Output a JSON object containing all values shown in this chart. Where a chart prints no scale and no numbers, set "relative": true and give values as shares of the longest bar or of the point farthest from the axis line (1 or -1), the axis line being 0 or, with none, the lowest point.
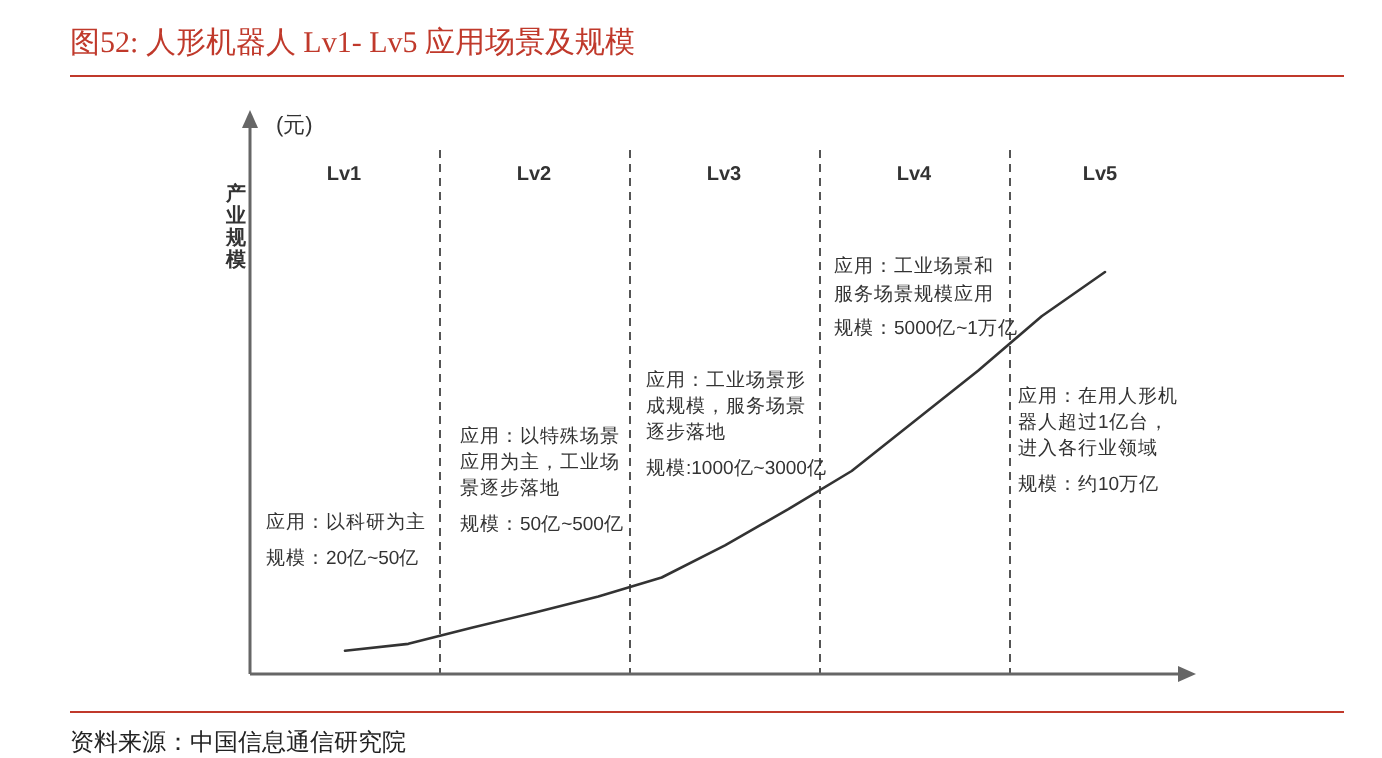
{
  "chart_data": {
    "type": "line",
    "relative": true,
    "title": "图52:  人形机器人 Lv1- Lv5 应用场景及规模",
    "ylabel": "产业规模",
    "categories": [
      null,
      null,
      null,
      null,
      null,
      null,
      null,
      null,
      null,
      null,
      null,
      null,
      null,
      null,
      null
    ],
    "values": [
      null,
      0.058,
      0.075,
      0.115,
      0.153,
      0.193,
      0.24,
      0.32,
      0.41,
      0.505,
      0.63,
      0.755,
      0.89,
      1,
      null
    ],
    "color": "#333333",
    "line_style": "solid",
    "annotations": [
      "(元)",
      "Lv1",
      "Lv2",
      "Lv3",
      "Lv4",
      "Lv5",
      "应用：以科研为主",
      "规模：20亿~50亿",
      "应用：以特殊场景",
      "应用为主，工业场",
      "景逐步落地",
      "规模：50亿~500亿",
      "应用：工业场景形",
      "成规模，服务场景",
      "逐步落地",
      "规模:1000亿~3000亿",
      "应用：工业场景和",
      "服务场景规模应用",
      "规模：5000亿~1万亿",
      "应用：在用人形机",
      "器人超过1亿台，",
      "进入各行业领域",
      "规模：约10万亿",
      "资料来源：中国信息通信研究院"
    ]
  }
}
